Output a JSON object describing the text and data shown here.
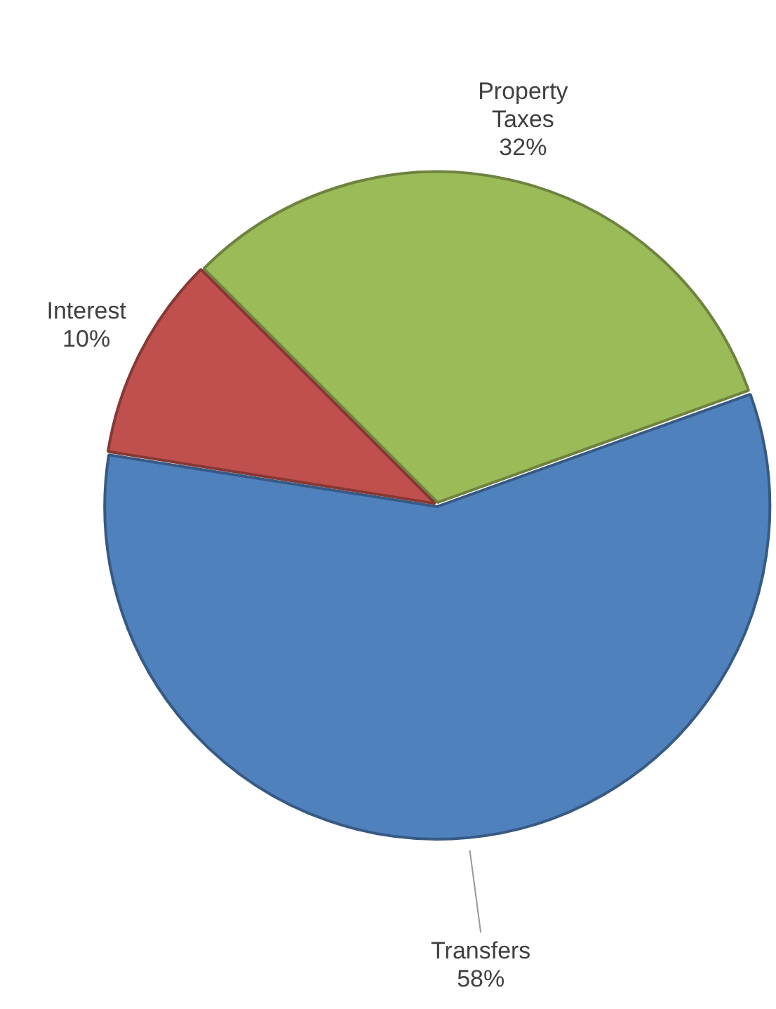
{
  "chart_data": {
    "type": "pie",
    "categories": [
      "Property Taxes",
      "Transfers",
      "Interest"
    ],
    "values": [
      32,
      58,
      10
    ],
    "colors": [
      "#9bbb59",
      "#4f81bd",
      "#c0504d"
    ],
    "value_labels": [
      "32%",
      "58%",
      "10%"
    ],
    "legend": false
  }
}
